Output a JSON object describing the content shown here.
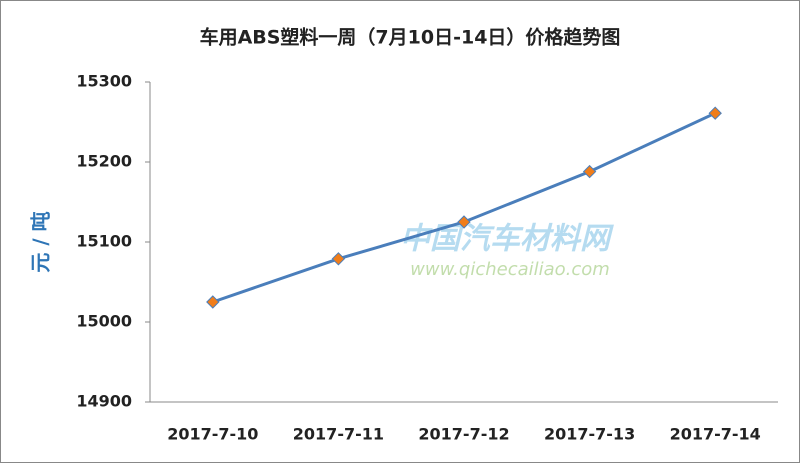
{
  "chart_data": {
    "type": "line",
    "title": "车用ABS塑料一周（7月10日-14日）价格趋势图",
    "y_label": "元 / 吨",
    "categories": [
      "2017-7-10",
      "2017-7-11",
      "2017-7-12",
      "2017-7-13",
      "2017-7-14"
    ],
    "series": [
      {
        "name": "价格",
        "color": "#4a7ebb",
        "marker_color": "#f07d1a",
        "values": [
          15025,
          15079,
          15125,
          15188,
          15261
        ]
      }
    ],
    "ylim": [
      14900,
      15300
    ],
    "yticks": [
      14900,
      15000,
      15100,
      15200,
      15300
    ],
    "grid": false
  },
  "watermark": {
    "name": "中国汽车材料网",
    "url": "www.qichecailiao.com"
  }
}
